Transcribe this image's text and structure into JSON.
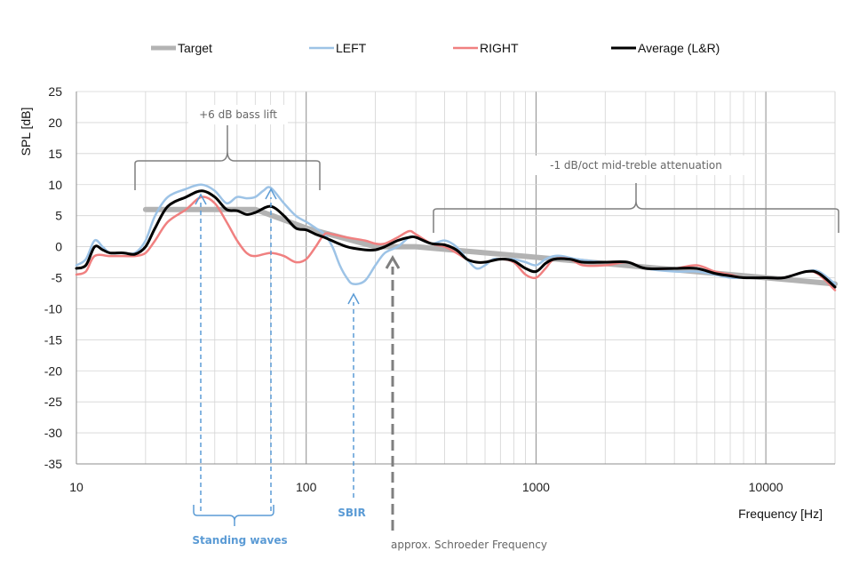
{
  "chart_data": {
    "type": "line",
    "xscale": "log",
    "xlim": [
      10,
      20000
    ],
    "ylim": [
      -35,
      25
    ],
    "xticks": [
      10,
      100,
      1000,
      10000
    ],
    "xtick_labels": [
      "10",
      "100",
      "1000",
      "10000"
    ],
    "yticks": [
      25,
      20,
      15,
      10,
      5,
      0,
      -5,
      -10,
      -15,
      -20,
      -25,
      -30,
      -35
    ],
    "ylabel": "SPL  [dB]",
    "xlabel": "Frequency  [Hz]",
    "grid": true,
    "legend_position": "top",
    "series": [
      {
        "name": "Target",
        "color": "#b3b3b3",
        "points": [
          [
            20,
            6
          ],
          [
            60,
            6
          ],
          [
            100,
            3
          ],
          [
            200,
            0
          ],
          [
            300,
            0
          ],
          [
            1000,
            -1.7
          ],
          [
            3000,
            -3.3
          ],
          [
            10000,
            -5
          ],
          [
            20000,
            -6
          ]
        ]
      },
      {
        "name": "LEFT",
        "color": "#9dc3e6",
        "points": [
          [
            10,
            -3
          ],
          [
            11,
            -2
          ],
          [
            12,
            1
          ],
          [
            13,
            0
          ],
          [
            14,
            -1
          ],
          [
            16,
            -1
          ],
          [
            18,
            -1
          ],
          [
            20,
            1
          ],
          [
            22,
            5
          ],
          [
            25,
            8
          ],
          [
            30,
            9.3
          ],
          [
            35,
            10
          ],
          [
            40,
            9
          ],
          [
            45,
            7
          ],
          [
            50,
            8
          ],
          [
            55,
            7.8
          ],
          [
            60,
            8
          ],
          [
            65,
            9
          ],
          [
            70,
            9.5
          ],
          [
            80,
            7
          ],
          [
            90,
            5
          ],
          [
            100,
            4
          ],
          [
            110,
            3
          ],
          [
            120,
            2
          ],
          [
            130,
            0
          ],
          [
            140,
            -3
          ],
          [
            150,
            -5
          ],
          [
            160,
            -6
          ],
          [
            180,
            -5.5
          ],
          [
            200,
            -3
          ],
          [
            220,
            -1
          ],
          [
            250,
            0
          ],
          [
            280,
            1.5
          ],
          [
            300,
            1.5
          ],
          [
            350,
            0.5
          ],
          [
            400,
            1
          ],
          [
            450,
            0
          ],
          [
            500,
            -2
          ],
          [
            550,
            -3.5
          ],
          [
            600,
            -3
          ],
          [
            650,
            -2
          ],
          [
            700,
            -2
          ],
          [
            750,
            -2
          ],
          [
            800,
            -2
          ],
          [
            900,
            -2.5
          ],
          [
            1000,
            -3
          ],
          [
            1100,
            -2
          ],
          [
            1200,
            -1.5
          ],
          [
            1300,
            -1.5
          ],
          [
            1500,
            -2
          ],
          [
            2000,
            -2.5
          ],
          [
            2500,
            -2.5
          ],
          [
            3000,
            -3.5
          ],
          [
            4000,
            -4
          ],
          [
            5000,
            -4
          ],
          [
            6000,
            -4.5
          ],
          [
            7000,
            -5
          ],
          [
            8000,
            -5
          ],
          [
            10000,
            -5
          ],
          [
            12000,
            -5
          ],
          [
            15000,
            -4
          ],
          [
            17000,
            -4
          ],
          [
            20000,
            -6
          ]
        ]
      },
      {
        "name": "RIGHT",
        "color": "#f08080",
        "points": [
          [
            10,
            -4.5
          ],
          [
            11,
            -4
          ],
          [
            12,
            -1.5
          ],
          [
            14,
            -1.5
          ],
          [
            16,
            -1.5
          ],
          [
            18,
            -1.5
          ],
          [
            20,
            -1
          ],
          [
            22,
            1
          ],
          [
            25,
            4
          ],
          [
            30,
            6
          ],
          [
            35,
            8
          ],
          [
            40,
            7
          ],
          [
            45,
            4
          ],
          [
            50,
            1
          ],
          [
            55,
            -1
          ],
          [
            60,
            -1.5
          ],
          [
            70,
            -1
          ],
          [
            80,
            -1.5
          ],
          [
            90,
            -2.5
          ],
          [
            100,
            -2
          ],
          [
            110,
            0
          ],
          [
            120,
            2
          ],
          [
            130,
            2
          ],
          [
            150,
            1.5
          ],
          [
            180,
            1
          ],
          [
            200,
            0.5
          ],
          [
            220,
            0.5
          ],
          [
            250,
            1.5
          ],
          [
            280,
            2.5
          ],
          [
            300,
            2
          ],
          [
            350,
            0.5
          ],
          [
            400,
            0
          ],
          [
            450,
            -1
          ],
          [
            500,
            -2
          ],
          [
            550,
            -2.5
          ],
          [
            600,
            -2.5
          ],
          [
            700,
            -2
          ],
          [
            800,
            -2.5
          ],
          [
            900,
            -4.5
          ],
          [
            1000,
            -5
          ],
          [
            1100,
            -3.5
          ],
          [
            1200,
            -2
          ],
          [
            1400,
            -2
          ],
          [
            1600,
            -3
          ],
          [
            2000,
            -3
          ],
          [
            2500,
            -2.5
          ],
          [
            3000,
            -3.5
          ],
          [
            4000,
            -3.5
          ],
          [
            5000,
            -3
          ],
          [
            6000,
            -4
          ],
          [
            7000,
            -4.5
          ],
          [
            8000,
            -5
          ],
          [
            10000,
            -5
          ],
          [
            12000,
            -5
          ],
          [
            15000,
            -4
          ],
          [
            17000,
            -4.5
          ],
          [
            20000,
            -7
          ]
        ]
      },
      {
        "name": "Average (L&R)",
        "color": "#000000",
        "points": [
          [
            10,
            -3.5
          ],
          [
            11,
            -3
          ],
          [
            12,
            0
          ],
          [
            13,
            -0.5
          ],
          [
            14,
            -1
          ],
          [
            16,
            -1
          ],
          [
            18,
            -1.2
          ],
          [
            20,
            0
          ],
          [
            22,
            3
          ],
          [
            25,
            6.5
          ],
          [
            30,
            8
          ],
          [
            35,
            9
          ],
          [
            40,
            8
          ],
          [
            45,
            6
          ],
          [
            50,
            5.8
          ],
          [
            55,
            5.2
          ],
          [
            60,
            5.5
          ],
          [
            70,
            6.5
          ],
          [
            80,
            5
          ],
          [
            90,
            3
          ],
          [
            100,
            2.7
          ],
          [
            110,
            2
          ],
          [
            120,
            1.5
          ],
          [
            150,
            0
          ],
          [
            180,
            -0.5
          ],
          [
            200,
            -0.5
          ],
          [
            220,
            0
          ],
          [
            250,
            1
          ],
          [
            280,
            1.5
          ],
          [
            300,
            1.5
          ],
          [
            350,
            0.5
          ],
          [
            400,
            0.3
          ],
          [
            450,
            -0.5
          ],
          [
            500,
            -2
          ],
          [
            550,
            -2.5
          ],
          [
            600,
            -2.5
          ],
          [
            700,
            -2
          ],
          [
            800,
            -2.3
          ],
          [
            900,
            -3.5
          ],
          [
            1000,
            -4
          ],
          [
            1100,
            -2.7
          ],
          [
            1200,
            -2
          ],
          [
            1400,
            -2
          ],
          [
            1600,
            -2.5
          ],
          [
            2000,
            -2.5
          ],
          [
            2500,
            -2.5
          ],
          [
            3000,
            -3.5
          ],
          [
            4000,
            -3.5
          ],
          [
            5000,
            -3.5
          ],
          [
            6000,
            -4.3
          ],
          [
            7000,
            -4.7
          ],
          [
            8000,
            -5
          ],
          [
            10000,
            -5
          ],
          [
            12000,
            -5
          ],
          [
            15000,
            -4
          ],
          [
            17000,
            -4.3
          ],
          [
            20000,
            -6.5
          ]
        ]
      }
    ],
    "annotations": {
      "bass_lift": "+6 dB bass lift",
      "attenuation": "-1 dB/oct mid-treble attenuation",
      "standing_waves": "Standing waves",
      "sbir": "SBIR",
      "schroeder": "approx. Schroeder Frequency"
    }
  }
}
